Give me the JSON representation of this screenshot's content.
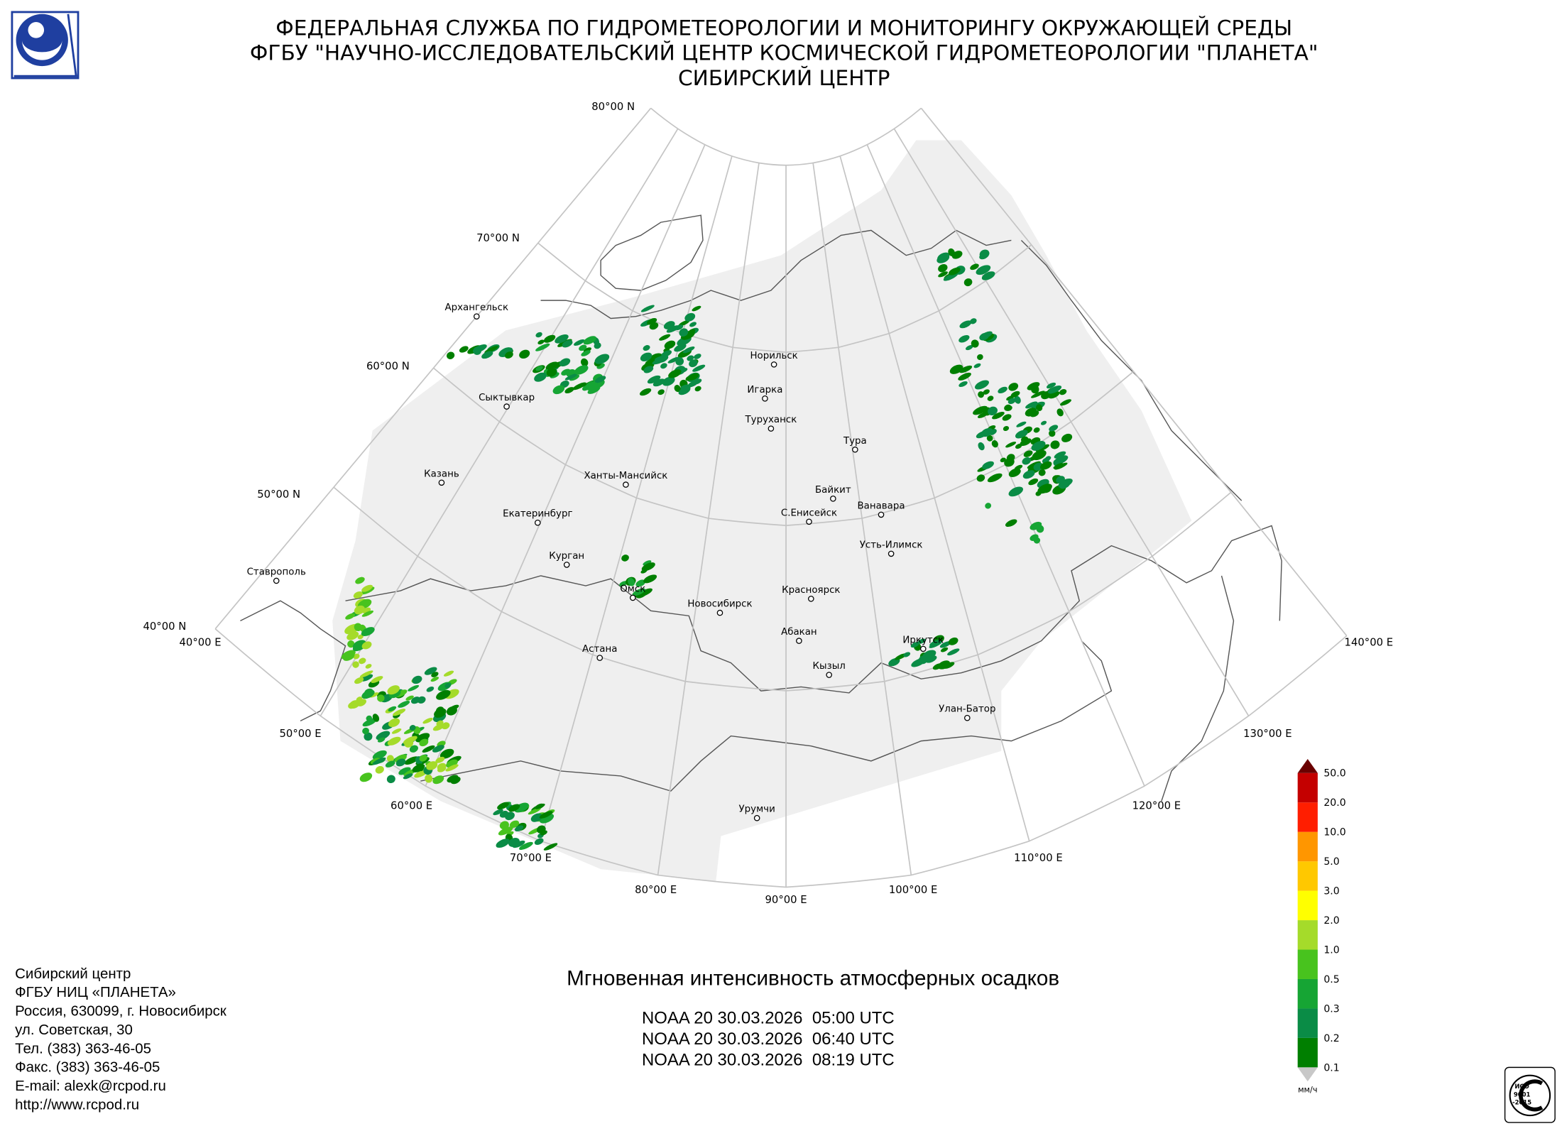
{
  "header": {
    "lines": [
      "ФЕДЕРАЛЬНАЯ СЛУЖБА ПО ГИДРОМЕТЕОРОЛОГИИ И МОНИТОРИНГУ ОКРУЖАЮЩЕЙ СРЕДЫ",
      "ФГБУ \"НАУЧНО-ИССЛЕДОВАТЕЛЬСКИЙ ЦЕНТР КОСМИЧЕСКОЙ ГИДРОМЕТЕОРОЛОГИИ \"ПЛАНЕТА\"",
      "СИБИРСКИЙ ЦЕНТР"
    ]
  },
  "map": {
    "parallel_labels": [
      "80°00 N",
      "70°00 N",
      "60°00 N",
      "50°00 N",
      "40°00 N"
    ],
    "meridian_labels": [
      "40°00 E",
      "50°00 E",
      "60°00 E",
      "70°00 E",
      "80°00 E",
      "90°00 E",
      "100°00 E",
      "110°00 E",
      "120°00 E",
      "130°00 E",
      "140°00 E"
    ],
    "cities": [
      "Архангельск",
      "Сыктывкар",
      "Казань",
      "Ханты-Мансийск",
      "Екатеринбург",
      "Курган",
      "Омск",
      "Новосибирск",
      "Астана",
      "Норильск",
      "Игарка",
      "Туруханск",
      "Тура",
      "Байкит",
      "С.Енисейск",
      "Ванавара",
      "Усть-Илимск",
      "Красноярск",
      "Абакан",
      "Кызыл",
      "Иркутск",
      "Улан-Батор",
      "Ставрополь",
      "Урумчи"
    ]
  },
  "legend": {
    "labels": [
      "0.1",
      "0.2",
      "0.3",
      "0.5",
      "1.0",
      "2.0",
      "3.0",
      "5.0",
      "10.0",
      "20.0",
      "50.0"
    ],
    "colors": [
      "#007f00",
      "#0a8c46",
      "#16a534",
      "#48c31e",
      "#a5db2a",
      "#ffff00",
      "#ffc800",
      "#ff9600",
      "#ff1e00",
      "#c40000"
    ],
    "over_color": "#6a0000",
    "under_color": "#c8c8c8",
    "unit": "мм/ч"
  },
  "product": {
    "title": "Мгновенная интенсивность атмосферных осадков",
    "passes": [
      "NOAA 20 30.03.2026  05:00 UTC",
      "NOAA 20 30.03.2026  06:40 UTC",
      "NOAA 20 30.03.2026  08:19 UTC"
    ]
  },
  "contact": {
    "lines": [
      "Сибирский центр",
      "ФГБУ НИЦ «ПЛАНЕТА»",
      "Россия, 630099, г. Новосибирск",
      "ул. Советская, 30",
      "Тел. (383) 363-46-05",
      "Факс. (383) 363-46-05",
      "E-mail: alexk@rcpod.ru",
      "http://www.rcpod.ru"
    ]
  },
  "certification": {
    "lines": [
      "ИСО",
      "9001",
      "-2015"
    ]
  }
}
